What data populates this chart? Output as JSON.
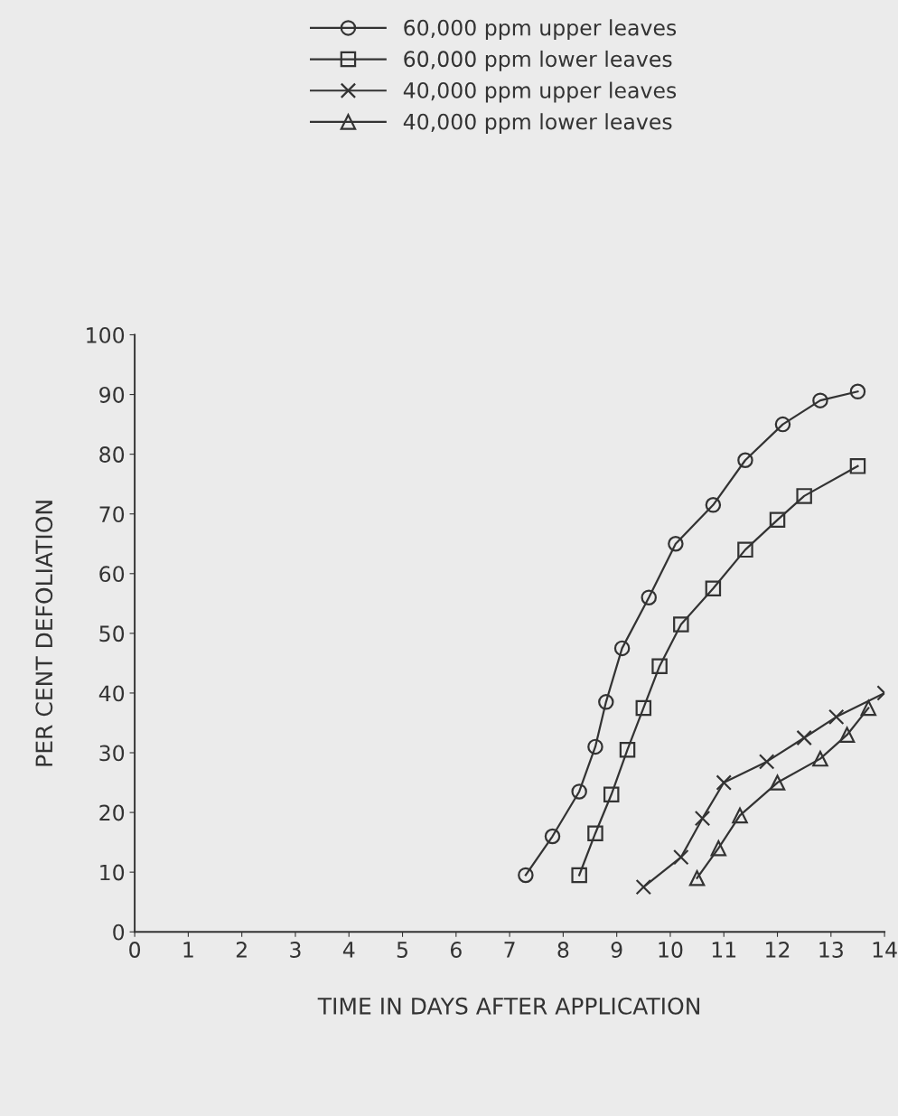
{
  "chart_data": {
    "type": "line",
    "xlabel": "TIME IN DAYS AFTER APPLICATION",
    "ylabel": "PER CENT DEFOLIATION",
    "xlim": [
      0,
      14
    ],
    "ylim": [
      0,
      100
    ],
    "xticks": [
      0,
      1,
      2,
      3,
      4,
      5,
      6,
      7,
      8,
      9,
      10,
      11,
      12,
      13,
      14
    ],
    "yticks": [
      0,
      10,
      20,
      30,
      40,
      50,
      60,
      70,
      80,
      90,
      100
    ],
    "grid": false,
    "legend": "top",
    "line_style": "solid",
    "series": [
      {
        "name": "60,000 ppm upper leaves",
        "color": "#333333",
        "marker": "circle",
        "x": [
          7.3,
          7.8,
          8.3,
          8.6,
          8.8,
          9.1,
          9.6,
          10.1,
          10.8,
          11.4,
          12.1,
          12.8,
          13.5
        ],
        "values": [
          9.5,
          16,
          23.5,
          31,
          38.5,
          47.5,
          56,
          65,
          71.5,
          79,
          85,
          89,
          90.5
        ]
      },
      {
        "name": "60,000 ppm lower leaves",
        "color": "#333333",
        "marker": "square",
        "x": [
          8.3,
          8.6,
          8.9,
          9.2,
          9.5,
          9.8,
          10.2,
          10.8,
          11.4,
          12.0,
          12.5,
          13.5
        ],
        "values": [
          9.5,
          16.5,
          23,
          30.5,
          37.5,
          44.5,
          51.5,
          57.5,
          64,
          69,
          73,
          78
        ]
      },
      {
        "name": "40,000 ppm upper leaves",
        "color": "#333333",
        "marker": "cross",
        "x": [
          9.5,
          10.2,
          10.6,
          11.0,
          11.8,
          12.5,
          13.1,
          14.0
        ],
        "values": [
          7.5,
          12.5,
          19,
          25,
          28.5,
          32.5,
          36,
          40
        ]
      },
      {
        "name": "40,000 ppm lower leaves",
        "color": "#333333",
        "marker": "triangle",
        "x": [
          10.5,
          10.9,
          11.3,
          12.0,
          12.8,
          13.3,
          13.7
        ],
        "values": [
          9,
          14,
          19.5,
          25,
          29,
          33,
          37.5
        ]
      }
    ]
  }
}
